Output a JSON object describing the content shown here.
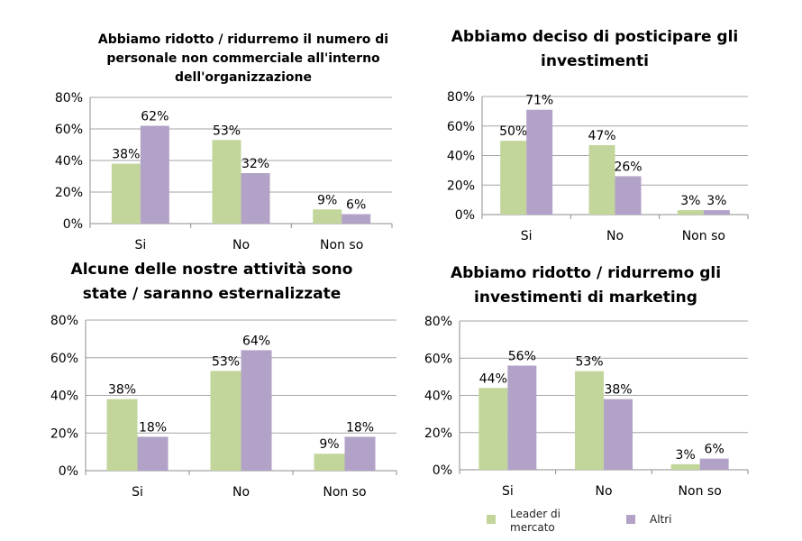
{
  "colors": {
    "leader": "#c2d69b",
    "altri": "#b2a2c7",
    "grid": "#a6a6a6",
    "axis": "#8c8c8c"
  },
  "legend": {
    "items": [
      {
        "name": "Leader di mercato",
        "color": "#c2d69b"
      },
      {
        "name": "Altri",
        "color": "#b2a2c7"
      }
    ]
  },
  "chart_data": [
    {
      "type": "bar",
      "title": "Abbiamo ridotto / ridurremo il numero di personale non commerciale all'interno dell'organizzazione",
      "categories": [
        "Si",
        "No",
        "Non so"
      ],
      "series": [
        {
          "name": "Leader di mercato",
          "values": [
            38,
            53,
            9
          ]
        },
        {
          "name": "Altri",
          "values": [
            62,
            32,
            6
          ]
        }
      ],
      "ylim": [
        0,
        80
      ],
      "yticks": [
        "0%",
        "20%",
        "40%",
        "60%",
        "80%"
      ],
      "grid": true
    },
    {
      "type": "bar",
      "title": "Abbiamo deciso di posticipare gli investimenti",
      "categories": [
        "Si",
        "No",
        "Non so"
      ],
      "series": [
        {
          "name": "Leader di mercato",
          "values": [
            50,
            47,
            3
          ]
        },
        {
          "name": "Altri",
          "values": [
            71,
            26,
            3
          ]
        }
      ],
      "ylim": [
        0,
        80
      ],
      "yticks": [
        "0%",
        "20%",
        "40%",
        "60%",
        "80%"
      ],
      "grid": true
    },
    {
      "type": "bar",
      "title": "Alcune delle nostre attività sono state / saranno esternalizzate",
      "categories": [
        "Si",
        "No",
        "Non so"
      ],
      "series": [
        {
          "name": "Leader di mercato",
          "values": [
            38,
            53,
            9
          ]
        },
        {
          "name": "Altri",
          "values": [
            18,
            64,
            18
          ]
        }
      ],
      "ylim": [
        0,
        80
      ],
      "yticks": [
        "0%",
        "20%",
        "40%",
        "60%",
        "80%"
      ],
      "grid": true
    },
    {
      "type": "bar",
      "title": "Abbiamo ridotto / ridurremo gli investimenti di marketing",
      "categories": [
        "Si",
        "No",
        "Non so"
      ],
      "series": [
        {
          "name": "Leader di mercato",
          "values": [
            44,
            53,
            3
          ]
        },
        {
          "name": "Altri",
          "values": [
            56,
            38,
            6
          ]
        }
      ],
      "ylim": [
        0,
        80
      ],
      "yticks": [
        "0%",
        "20%",
        "40%",
        "60%",
        "80%"
      ],
      "grid": true
    }
  ]
}
